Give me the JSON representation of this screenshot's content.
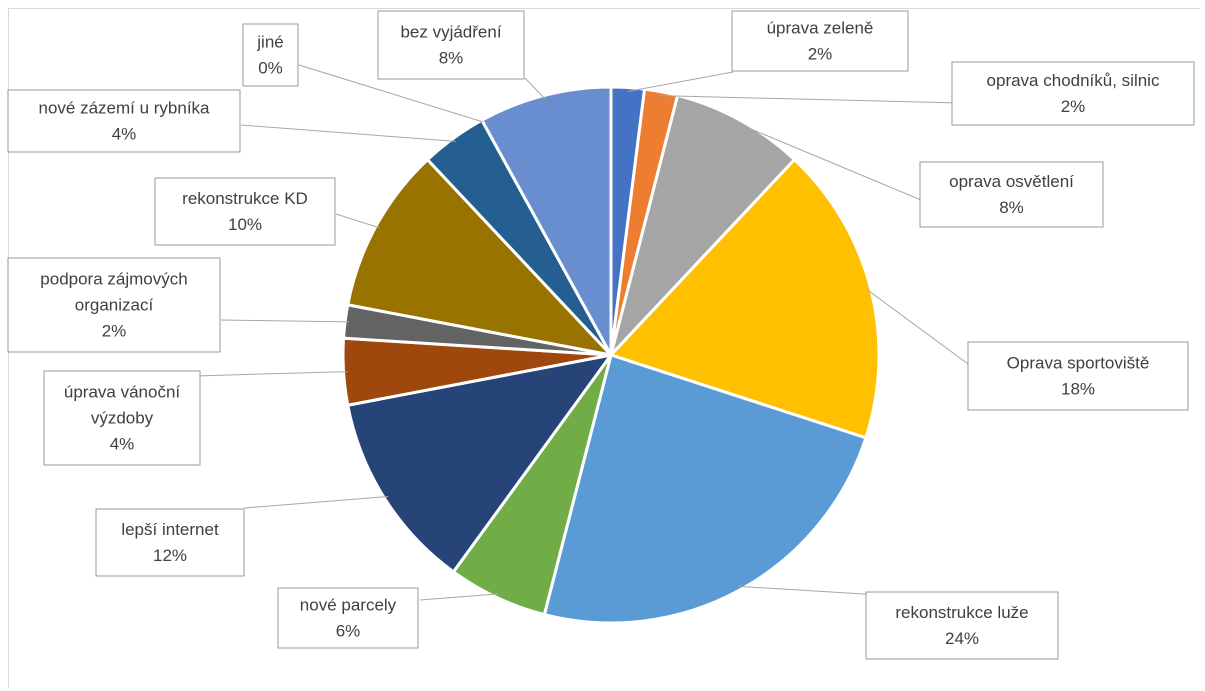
{
  "chart_data": {
    "type": "pie",
    "slices": [
      {
        "label": "úprava zeleně",
        "value": 2,
        "display": "2%",
        "color": "#4472c4"
      },
      {
        "label": "oprava chodníků, silnic",
        "value": 2,
        "display": "2%",
        "color": "#ed7d31"
      },
      {
        "label": "oprava osvětlení",
        "value": 8,
        "display": "8%",
        "color": "#a5a5a5"
      },
      {
        "label": "Oprava sportoviště",
        "value": 18,
        "display": "18%",
        "color": "#ffc000"
      },
      {
        "label": "rekonstrukce luže",
        "value": 24,
        "display": "24%",
        "color": "#5b9bd5"
      },
      {
        "label": "nové parcely",
        "value": 6,
        "display": "6%",
        "color": "#70ad47"
      },
      {
        "label": "lepší internet",
        "value": 12,
        "display": "12%",
        "color": "#264478"
      },
      {
        "label": "úprava vánoční výzdoby",
        "value": 4,
        "display": "4%",
        "color": "#9e480e"
      },
      {
        "label": "podpora zájmových organizací",
        "value": 2,
        "display": "2%",
        "color": "#636363"
      },
      {
        "label": "rekonstrukce KD",
        "value": 10,
        "display": "10%",
        "color": "#997300"
      },
      {
        "label": "nové zázemí u rybníka",
        "value": 4,
        "display": "4%",
        "color": "#255e91"
      },
      {
        "label": "jiné",
        "value": 0,
        "display": "0%",
        "color": "#43682b"
      },
      {
        "label": "bez vyjádření",
        "value": 8,
        "display": "8%",
        "color": "#698ed0"
      }
    ],
    "label_lines": [
      [
        "úprava zeleně",
        "2%"
      ],
      [
        "oprava chodníků, silnic",
        "2%"
      ],
      [
        "oprava osvětlení",
        "8%"
      ],
      [
        "Oprava sportoviště",
        "18%"
      ],
      [
        "rekonstrukce luže",
        "24%"
      ],
      [
        "nové parcely",
        "6%"
      ],
      [
        "lepší internet",
        "12%"
      ],
      [
        "úprava vánoční",
        "výzdoby",
        "4%"
      ],
      [
        "podpora zájmových",
        "organizací",
        "2%"
      ],
      [
        "rekonstrukce KD",
        "10%"
      ],
      [
        "nové zázemí u rybníka",
        "4%"
      ],
      [
        "jiné",
        "0%"
      ],
      [
        "bez vyjádření",
        "8%"
      ]
    ],
    "start_angle_deg": 0,
    "direction": "clockwise",
    "legend": "none",
    "data_labels": "callouts"
  }
}
